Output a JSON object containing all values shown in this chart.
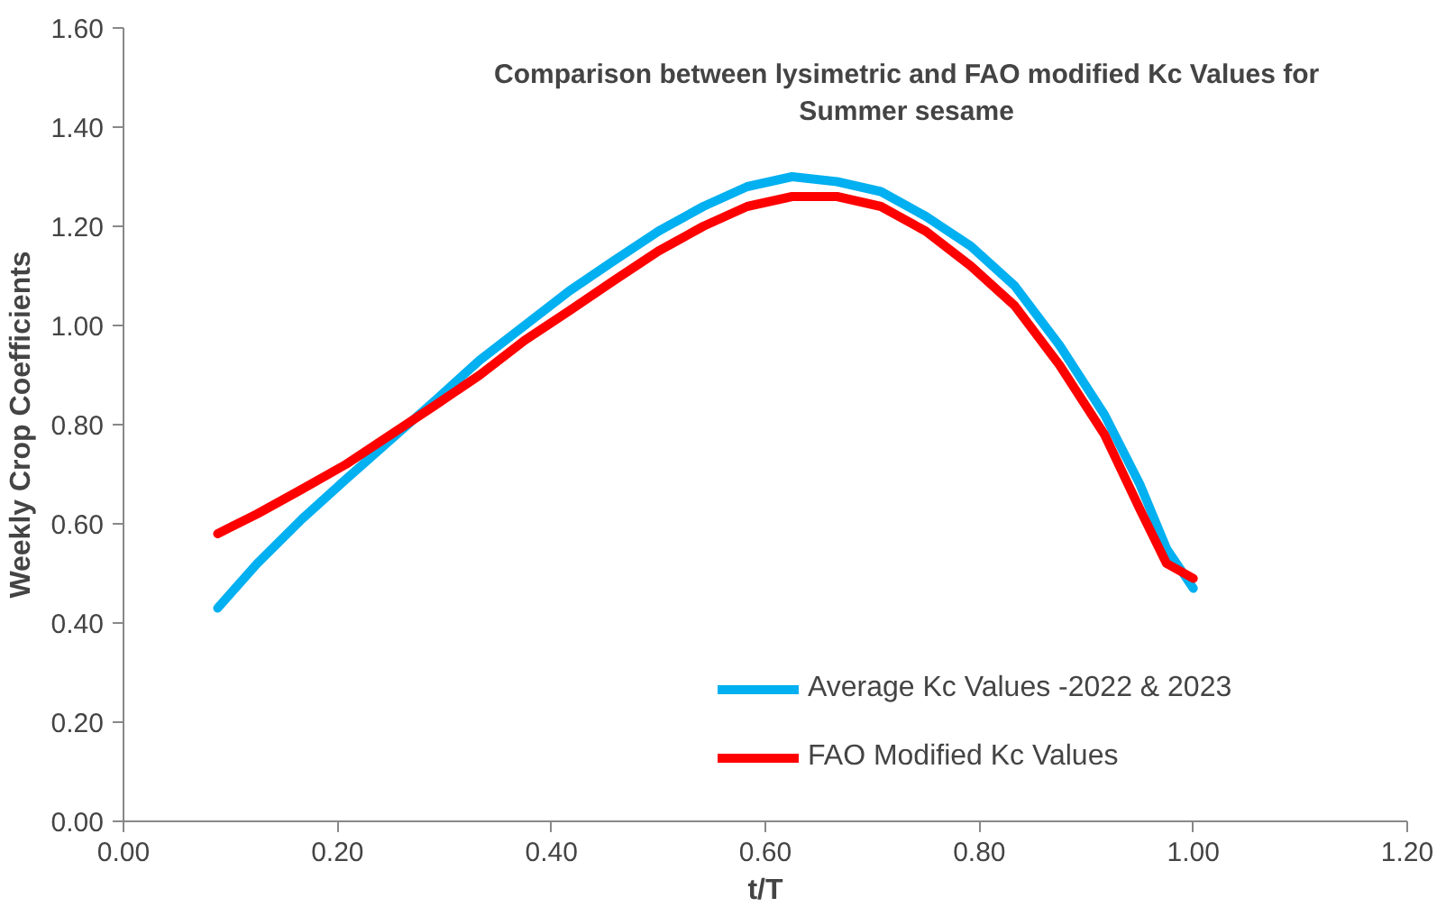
{
  "chart_data": {
    "type": "line",
    "title": "Comparison between lysimetric and FAO modified Kc Values for\nSummer sesame",
    "xlabel": "t/T",
    "ylabel": "Weekly Crop Coefficients",
    "xlim": [
      0,
      1.2
    ],
    "xticks": [
      {
        "value": 0,
        "label": "0.00"
      },
      {
        "value": 0.2,
        "label": "0.20"
      },
      {
        "value": 0.4,
        "label": "0.40"
      },
      {
        "value": 0.6,
        "label": "0.60"
      },
      {
        "value": 0.8,
        "label": "0.80"
      },
      {
        "value": 1.0,
        "label": "1.00"
      },
      {
        "value": 1.2,
        "label": "1.20"
      }
    ],
    "ylim": [
      0,
      1.6
    ],
    "yticks": [
      {
        "value": 0,
        "label": "0.00"
      },
      {
        "value": 0.2,
        "label": "0.20"
      },
      {
        "value": 0.4,
        "label": "0.40"
      },
      {
        "value": 0.6,
        "label": "0.60"
      },
      {
        "value": 0.8,
        "label": "0.80"
      },
      {
        "value": 1.0,
        "label": "1.00"
      },
      {
        "value": 1.2,
        "label": "1.20"
      },
      {
        "value": 1.4,
        "label": "1.40"
      },
      {
        "value": 1.6,
        "label": "1.60"
      }
    ],
    "grid": false,
    "legend": "bottom",
    "marker": "none",
    "line_style": "solid",
    "series": [
      {
        "name": "Average Kc Values -2022 & 2023",
        "color": "#00b0f0",
        "x": [
          0.088,
          0.125,
          0.167,
          0.208,
          0.25,
          0.292,
          0.333,
          0.375,
          0.417,
          0.458,
          0.5,
          0.542,
          0.583,
          0.625,
          0.667,
          0.708,
          0.75,
          0.792,
          0.833,
          0.875,
          0.917,
          0.95,
          0.975,
          1.0
        ],
        "values": [
          0.43,
          0.52,
          0.61,
          0.69,
          0.77,
          0.85,
          0.93,
          1.0,
          1.07,
          1.13,
          1.19,
          1.24,
          1.28,
          1.3,
          1.29,
          1.27,
          1.22,
          1.16,
          1.08,
          0.96,
          0.82,
          0.68,
          0.55,
          0.47
        ]
      },
      {
        "name": "FAO Modified Kc Values",
        "color": "#ff0000",
        "x": [
          0.088,
          0.125,
          0.167,
          0.208,
          0.25,
          0.292,
          0.333,
          0.375,
          0.417,
          0.458,
          0.5,
          0.542,
          0.583,
          0.625,
          0.667,
          0.708,
          0.75,
          0.792,
          0.833,
          0.875,
          0.917,
          0.95,
          0.975,
          1.0
        ],
        "values": [
          0.58,
          0.62,
          0.67,
          0.72,
          0.78,
          0.84,
          0.9,
          0.97,
          1.03,
          1.09,
          1.15,
          1.2,
          1.24,
          1.26,
          1.26,
          1.24,
          1.19,
          1.12,
          1.04,
          0.92,
          0.78,
          0.63,
          0.52,
          0.49
        ]
      }
    ]
  }
}
